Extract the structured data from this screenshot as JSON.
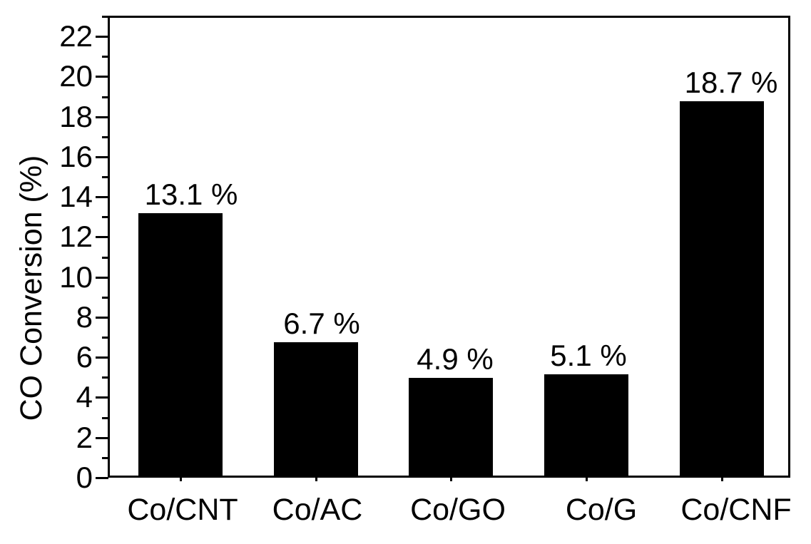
{
  "chart_data": {
    "type": "bar",
    "title": "",
    "xlabel": "",
    "ylabel": "CO Conversion (%)",
    "categories": [
      "Co/CNT",
      "Co/AC",
      "Co/GO",
      "Co/G",
      "Co/CNF"
    ],
    "values": [
      13.1,
      6.7,
      4.9,
      5.1,
      18.7
    ],
    "bar_labels": [
      "13.1 %",
      "6.7 %",
      "4.9 %",
      "5.1 %",
      "18.7 %"
    ],
    "ylim": [
      0,
      23
    ],
    "yticks_major": [
      0,
      2,
      4,
      6,
      8,
      10,
      12,
      14,
      16,
      18,
      20,
      22
    ],
    "yticks_minor": [
      1,
      3,
      5,
      7,
      9,
      11,
      13,
      15,
      17,
      19,
      21,
      23
    ],
    "grid": false,
    "legend": null,
    "bar_color": "#000000",
    "axis_color": "#000000",
    "background_color": "#ffffff",
    "frame": "full-box"
  }
}
